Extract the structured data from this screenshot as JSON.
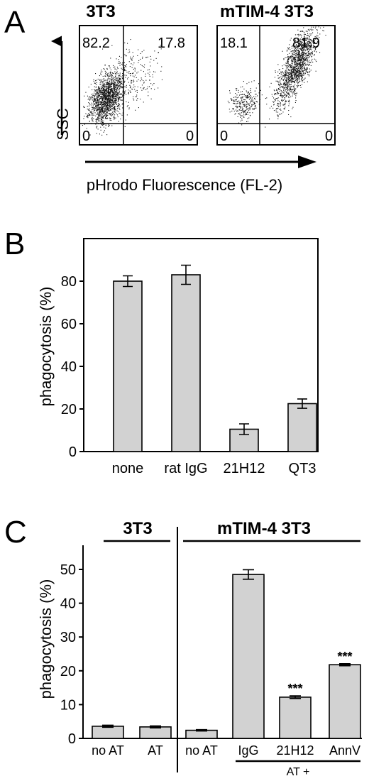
{
  "panel_a": {
    "letter": "A",
    "y_axis_label": "SSC",
    "x_axis_label": "pHrodo Fluorescence (FL-2)",
    "plots": [
      {
        "title": "3T3",
        "quadrants": {
          "ul": "82.2",
          "ur": "17.8",
          "ll": "0",
          "lr": "0"
        }
      },
      {
        "title": "mTIM-4 3T3",
        "quadrants": {
          "ul": "18.1",
          "ur": "81.9",
          "ll": "0",
          "lr": "0"
        }
      }
    ]
  },
  "panel_b": {
    "letter": "B"
  },
  "panel_c": {
    "letter": "C",
    "group_3t3": "3T3",
    "group_mtim4": "mTIM-4 3T3",
    "at_plus_label": "AT +",
    "significance_mark": "***"
  },
  "chart_data": [
    {
      "type": "scatter",
      "title": "3T3",
      "ylabel": "SSC",
      "xlabel": "pHrodo Fluorescence (FL-2)",
      "quadrant_percent": {
        "upper_left": 82.2,
        "upper_right": 17.8,
        "lower_left": 0,
        "lower_right": 0
      }
    },
    {
      "type": "scatter",
      "title": "mTIM-4 3T3",
      "ylabel": "SSC",
      "xlabel": "pHrodo Fluorescence (FL-2)",
      "quadrant_percent": {
        "upper_left": 18.1,
        "upper_right": 81.9,
        "lower_left": 0,
        "lower_right": 0
      }
    },
    {
      "type": "bar",
      "categories": [
        "none",
        "rat IgG",
        "21H12",
        "QT3"
      ],
      "values": [
        80,
        83,
        10.5,
        22.5
      ],
      "errors": [
        2.5,
        4.5,
        2.5,
        2.2
      ],
      "ylabel": "phagocytosis (%)",
      "ylim": [
        0,
        100
      ],
      "yticks": [
        0,
        20,
        40,
        60,
        80
      ],
      "grid": false
    },
    {
      "type": "bar",
      "categories": [
        "no AT",
        "AT",
        "no AT",
        "IgG",
        "21H12",
        "AnnV"
      ],
      "groups": [
        "3T3",
        "3T3",
        "mTIM-4 3T3",
        "mTIM-4 3T3",
        "mTIM-4 3T3",
        "mTIM-4 3T3"
      ],
      "values": [
        3.6,
        3.4,
        2.4,
        48.5,
        12.2,
        21.8
      ],
      "errors": [
        0.3,
        0.3,
        0.2,
        1.4,
        0.4,
        0.3
      ],
      "significance": [
        "",
        "",
        "",
        "",
        "***",
        "***"
      ],
      "ylabel": "phagocytosis (%)",
      "ylim": [
        0,
        50
      ],
      "yticks": [
        0,
        10,
        20,
        30,
        40,
        50
      ],
      "grid": false
    }
  ]
}
